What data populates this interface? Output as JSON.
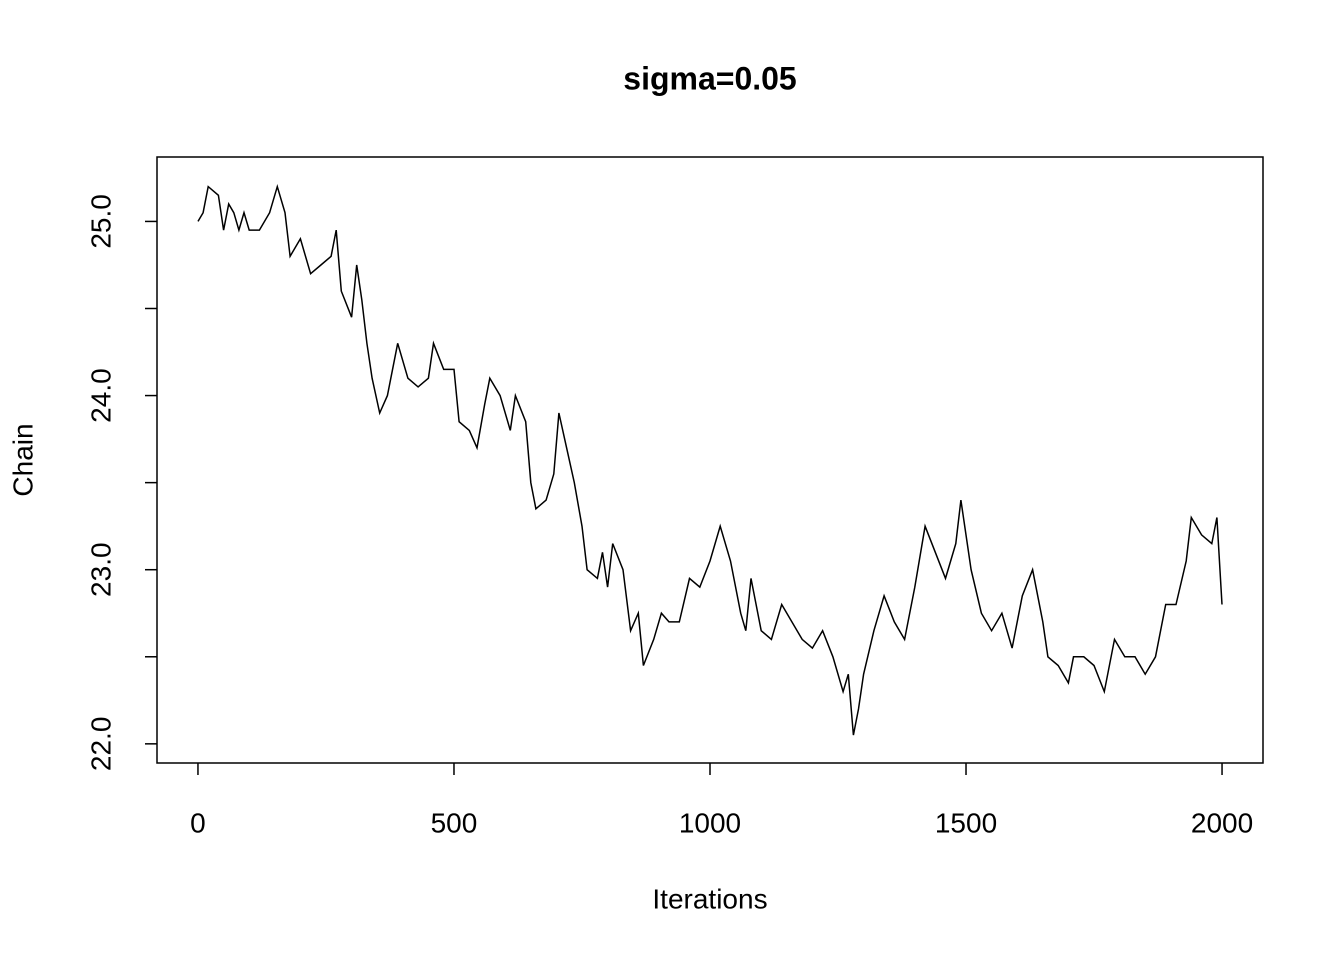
{
  "chart_data": {
    "type": "line",
    "title": "sigma=0.05",
    "x_label": "Iterations",
    "y_label": "Chain",
    "x": [
      0,
      10,
      20,
      40,
      50,
      60,
      70,
      80,
      90,
      100,
      120,
      140,
      155,
      170,
      180,
      200,
      220,
      240,
      260,
      270,
      280,
      300,
      310,
      320,
      330,
      340,
      355,
      370,
      390,
      410,
      430,
      450,
      460,
      480,
      500,
      510,
      530,
      545,
      560,
      570,
      590,
      610,
      620,
      640,
      650,
      660,
      680,
      695,
      705,
      720,
      735,
      750,
      760,
      780,
      790,
      800,
      810,
      830,
      845,
      860,
      870,
      890,
      905,
      920,
      940,
      960,
      980,
      1000,
      1020,
      1040,
      1060,
      1070,
      1080,
      1100,
      1120,
      1140,
      1160,
      1180,
      1200,
      1220,
      1240,
      1260,
      1270,
      1280,
      1290,
      1300,
      1320,
      1340,
      1360,
      1380,
      1400,
      1420,
      1440,
      1460,
      1480,
      1490,
      1510,
      1530,
      1550,
      1570,
      1590,
      1610,
      1630,
      1650,
      1660,
      1680,
      1700,
      1710,
      1730,
      1750,
      1770,
      1790,
      1810,
      1830,
      1850,
      1870,
      1890,
      1910,
      1930,
      1940,
      1960,
      1980,
      1990,
      2000
    ],
    "series": [
      {
        "name": "Chain",
        "color": "#000000",
        "values": [
          25.0,
          25.05,
          25.2,
          25.15,
          24.95,
          25.1,
          25.05,
          24.95,
          25.05,
          24.95,
          24.95,
          25.05,
          25.2,
          25.05,
          24.8,
          24.9,
          24.7,
          24.75,
          24.8,
          24.95,
          24.6,
          24.45,
          24.75,
          24.55,
          24.3,
          24.1,
          23.9,
          24.0,
          24.3,
          24.1,
          24.05,
          24.1,
          24.3,
          24.15,
          24.15,
          23.85,
          23.8,
          23.7,
          23.95,
          24.1,
          24.0,
          23.8,
          24.0,
          23.85,
          23.5,
          23.35,
          23.4,
          23.55,
          23.9,
          23.7,
          23.5,
          23.25,
          23.0,
          22.95,
          23.1,
          22.9,
          23.15,
          23.0,
          22.65,
          22.75,
          22.45,
          22.6,
          22.75,
          22.7,
          22.7,
          22.95,
          22.9,
          23.05,
          23.25,
          23.05,
          22.75,
          22.65,
          22.95,
          22.65,
          22.6,
          22.8,
          22.7,
          22.6,
          22.55,
          22.65,
          22.5,
          22.3,
          22.4,
          22.05,
          22.2,
          22.4,
          22.65,
          22.85,
          22.7,
          22.6,
          22.9,
          23.25,
          23.1,
          22.95,
          23.15,
          23.4,
          23.0,
          22.75,
          22.65,
          22.75,
          22.55,
          22.85,
          23.0,
          22.7,
          22.5,
          22.45,
          22.35,
          22.5,
          22.5,
          22.45,
          22.3,
          22.6,
          22.5,
          22.5,
          22.4,
          22.5,
          22.8,
          22.8,
          23.05,
          23.3,
          23.2,
          23.15,
          23.3,
          22.8
        ]
      }
    ],
    "xlim": [
      -80,
      2080
    ],
    "ylim": [
      21.89,
      25.37
    ],
    "xticks": [
      0,
      500,
      1000,
      1500,
      2000
    ],
    "yticks": [
      {
        "value": 22,
        "label": "22.0"
      },
      {
        "value": 22.5,
        "label": null
      },
      {
        "value": 23,
        "label": "23.0"
      },
      {
        "value": 23.5,
        "label": null
      },
      {
        "value": 24,
        "label": "24.0"
      },
      {
        "value": 24.5,
        "label": null
      },
      {
        "value": 25,
        "label": "25.0"
      }
    ]
  }
}
